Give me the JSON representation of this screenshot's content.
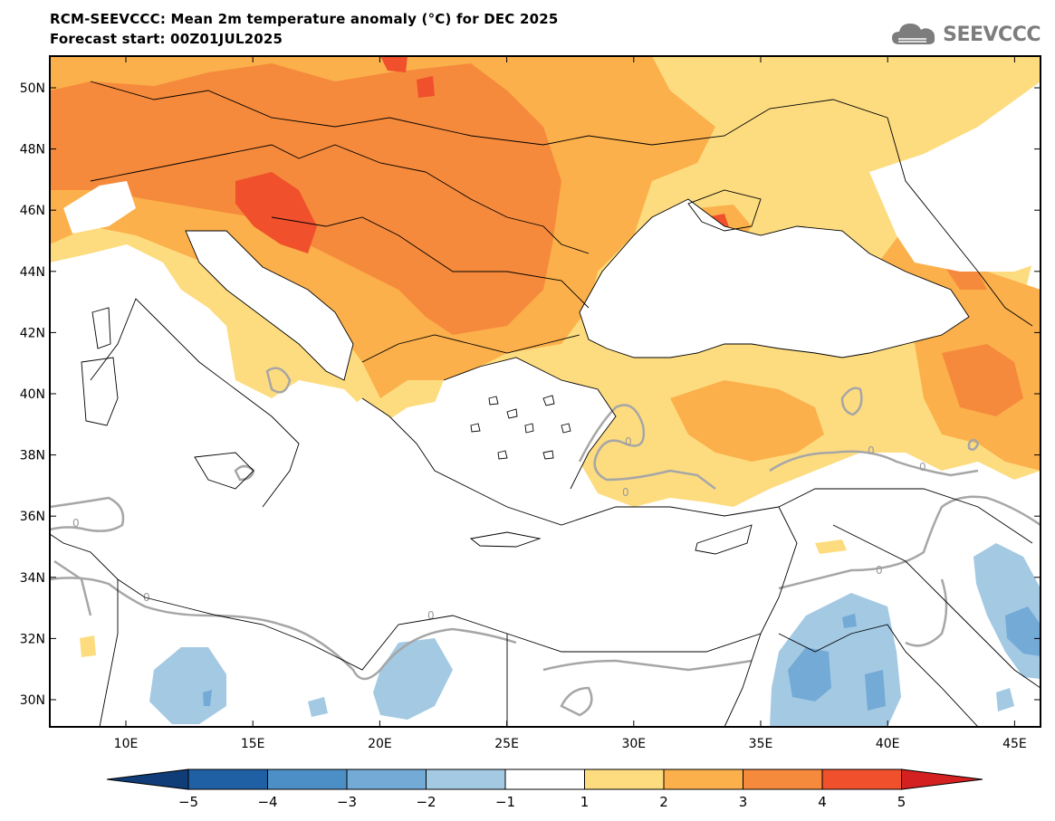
{
  "title": "RCM-SEEVCCC: Mean 2m temperature anomaly (°C) for DEC 2025",
  "subtitle": "Forecast start: 00Z01JUL2025",
  "logo_text": "SEEVCCC",
  "map": {
    "lat_labels": [
      "50N",
      "48N",
      "46N",
      "44N",
      "42N",
      "40N",
      "38N",
      "36N",
      "34N",
      "32N",
      "30N"
    ],
    "lon_labels": [
      "10E",
      "15E",
      "20E",
      "25E",
      "30E",
      "35E",
      "40E",
      "45E"
    ],
    "contour_label": "0"
  },
  "colorbar": {
    "tick_labels": [
      "−5",
      "−4",
      "−3",
      "−2",
      "−1",
      "1",
      "2",
      "3",
      "4",
      "5"
    ],
    "colors": [
      "#1f5fa3",
      "#4c8fc6",
      "#74aad6",
      "#a3c9e3",
      "#ffffff",
      "#fddc80",
      "#fbb04b",
      "#f68a3c",
      "#f0502c"
    ],
    "min_color": "#103d78",
    "max_color": "#d42020"
  },
  "colors": {
    "sea": "#ffffff",
    "border": "#000000",
    "zero_contour": "#a6a6a6",
    "logo": "#7d7d7d"
  }
}
